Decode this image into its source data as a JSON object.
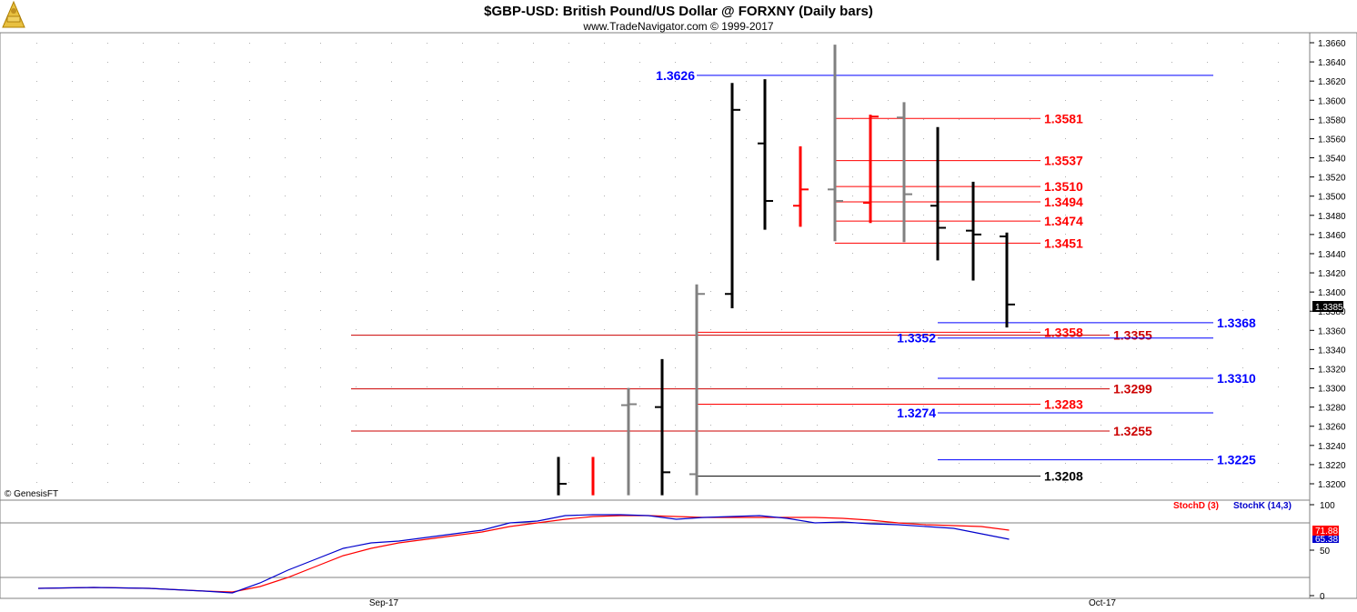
{
  "header": {
    "title": "$GBP-USD:  British Pound/US Dollar @ FORXNY  (Daily bars)",
    "subtitle": "www.TradeNavigator.com © 1999-2017",
    "copyright": "© GenesisFT"
  },
  "chart_data": [
    {
      "type": "ohlc-bar",
      "ylim": [
        1.319,
        1.3665
      ],
      "y_ticks": [
        "1.3660",
        "1.3640",
        "1.3620",
        "1.3600",
        "1.3580",
        "1.3560",
        "1.3540",
        "1.3520",
        "1.3500",
        "1.3480",
        "1.3460",
        "1.3440",
        "1.3420",
        "1.3400",
        "1.3380",
        "1.3360",
        "1.3340",
        "1.3320",
        "1.3300",
        "1.3280",
        "1.3260",
        "1.3240",
        "1.3220",
        "1.3200"
      ],
      "x_labels": [
        "Sep-17",
        "Oct-17"
      ],
      "last_price": "1.3385",
      "bars": [
        {
          "x": 0,
          "o": null,
          "h": 1.3228,
          "l": 1.3188,
          "c": 1.32,
          "color": "#000000"
        },
        {
          "x": 1,
          "o": null,
          "h": 1.3228,
          "l": 1.3188,
          "c": null,
          "color": "#ff0000"
        },
        {
          "x": 2,
          "o": 1.3282,
          "h": 1.33,
          "l": 1.3188,
          "c": 1.3283,
          "color": "#808080"
        },
        {
          "x": 3,
          "o": 1.328,
          "h": 1.333,
          "l": 1.3188,
          "c": 1.3212,
          "color": "#000000"
        },
        {
          "x": 4,
          "o": 1.321,
          "h": 1.3408,
          "l": 1.3188,
          "c": 1.3398,
          "color": "#808080"
        },
        {
          "x": 5,
          "o": 1.3398,
          "h": 1.3618,
          "l": 1.3383,
          "c": 1.359,
          "color": "#000000"
        },
        {
          "x": 6,
          "o": 1.3555,
          "h": 1.3622,
          "l": 1.3465,
          "c": 1.3495,
          "color": "#000000"
        },
        {
          "x": 7,
          "o": 1.349,
          "h": 1.3552,
          "l": 1.3468,
          "c": 1.3507,
          "color": "#ff0000"
        },
        {
          "x": 8,
          "o": 1.3507,
          "h": 1.3658,
          "l": 1.3453,
          "c": 1.3495,
          "color": "#808080"
        },
        {
          "x": 9,
          "o": 1.3493,
          "h": 1.3585,
          "l": 1.3472,
          "c": 1.3583,
          "color": "#ff0000"
        },
        {
          "x": 10,
          "o": 1.3582,
          "h": 1.3598,
          "l": 1.3452,
          "c": 1.3502,
          "color": "#808080"
        },
        {
          "x": 11,
          "o": 1.349,
          "h": 1.3572,
          "l": 1.3433,
          "c": 1.3467,
          "color": "#000000"
        },
        {
          "x": 12,
          "o": 1.3464,
          "h": 1.3515,
          "l": 1.3412,
          "c": 1.346,
          "color": "#000000"
        },
        {
          "x": 13,
          "o": 1.3458,
          "h": 1.3462,
          "l": 1.3363,
          "c": 1.3387,
          "color": "#000000"
        }
      ],
      "levels": [
        {
          "value": 1.3626,
          "label": "1.3626",
          "color": "#0000ff",
          "x_start": 14,
          "x_end": 50,
          "label_side": "left",
          "label_x": 13
        },
        {
          "value": 1.3581,
          "label": "1.3581",
          "color": "#ff0000",
          "x_start": 34,
          "x_end": 42,
          "label_side": "right",
          "label_x": 43
        },
        {
          "value": 1.3537,
          "label": "1.3537",
          "color": "#ff0000",
          "x_start": 34,
          "x_end": 42,
          "label_side": "right",
          "label_x": 43
        },
        {
          "value": 1.351,
          "label": "1.3510",
          "color": "#ff0000",
          "x_start": 34,
          "x_end": 42,
          "label_side": "right",
          "label_x": 43
        },
        {
          "value": 1.3494,
          "label": "1.3494",
          "color": "#ff0000",
          "x_start": 34,
          "x_end": 42,
          "label_side": "right",
          "label_x": 43
        },
        {
          "value": 1.3474,
          "label": "1.3474",
          "color": "#ff0000",
          "x_start": 34,
          "x_end": 42,
          "label_side": "right",
          "label_x": 43
        },
        {
          "value": 1.3451,
          "label": "1.3451",
          "color": "#ff0000",
          "x_start": 34,
          "x_end": 42,
          "label_side": "right",
          "label_x": 43
        },
        {
          "value": 1.3368,
          "label": "1.3368",
          "color": "#0000ff",
          "x_start": 38,
          "x_end": 50,
          "label_side": "right",
          "label_x": 51
        },
        {
          "value": 1.3358,
          "label": "1.3358",
          "color": "#ff0000",
          "x_start": 28,
          "x_end": 42,
          "label_side": "right",
          "label_x": 43
        },
        {
          "value": 1.3355,
          "label": "1.3355",
          "color": "#cc0000",
          "x_start": 14,
          "x_end": 45,
          "label_side": "right",
          "label_x": 46
        },
        {
          "value": 1.3352,
          "label": "1.3352",
          "color": "#0000ff",
          "x_start": 38,
          "x_end": 50,
          "label_side": "left",
          "label_x": 37
        },
        {
          "value": 1.331,
          "label": "1.3310",
          "color": "#0000ff",
          "x_start": 38,
          "x_end": 50,
          "label_side": "right",
          "label_x": 51
        },
        {
          "value": 1.3299,
          "label": "1.3299",
          "color": "#cc0000",
          "x_start": 14,
          "x_end": 45,
          "label_side": "right",
          "label_x": 46
        },
        {
          "value": 1.3283,
          "label": "1.3283",
          "color": "#ff0000",
          "x_start": 28,
          "x_end": 42,
          "label_side": "right",
          "label_x": 43
        },
        {
          "value": 1.3274,
          "label": "1.3274",
          "color": "#0000ff",
          "x_start": 38,
          "x_end": 50,
          "label_side": "left",
          "label_x": 37
        },
        {
          "value": 1.3255,
          "label": "1.3255",
          "color": "#cc0000",
          "x_start": 14,
          "x_end": 45,
          "label_side": "right",
          "label_x": 46
        },
        {
          "value": 1.3225,
          "label": "1.3225",
          "color": "#0000ff",
          "x_start": 38,
          "x_end": 50,
          "label_side": "right",
          "label_x": 51
        },
        {
          "value": 1.3208,
          "label": "1.3208",
          "color": "#000000",
          "x_start": 28,
          "x_end": 42,
          "label_side": "right",
          "label_x": 43
        }
      ]
    },
    {
      "type": "line",
      "ylim": [
        0,
        100
      ],
      "y_ticks": [
        "100",
        "50",
        "0"
      ],
      "reference_lines": [
        80,
        20
      ],
      "legend": [
        {
          "name": "StochD (3)",
          "color": "#ff0000"
        },
        {
          "name": "StochK (14,3)",
          "color": "#0000cc"
        }
      ],
      "last_values": [
        "71.88",
        "65.38"
      ],
      "x": [
        0,
        1,
        2,
        3,
        4,
        5,
        6,
        7,
        8,
        9,
        10,
        11,
        12,
        13,
        14,
        15,
        16,
        17,
        18,
        19,
        20,
        21,
        22,
        23,
        24,
        25,
        26,
        27,
        28,
        29,
        30,
        31,
        32,
        33,
        34,
        35,
        36,
        37,
        38,
        39,
        40,
        41,
        42,
        43,
        44,
        45,
        46,
        47,
        48,
        49,
        50,
        51,
        52,
        53,
        54,
        55,
        56,
        57,
        58,
        59,
        60
      ],
      "series": [
        {
          "name": "StochD (3)",
          "color": "#ff0000",
          "points": [
            [
              0,
              8
            ],
            [
              2,
              9
            ],
            [
              4,
              8
            ],
            [
              6,
              5
            ],
            [
              7,
              4
            ],
            [
              8,
              10
            ],
            [
              9,
              20
            ],
            [
              10,
              32
            ],
            [
              11,
              44
            ],
            [
              12,
              52
            ],
            [
              13,
              58
            ],
            [
              14,
              62
            ],
            [
              15,
              66
            ],
            [
              16,
              70
            ],
            [
              17,
              76
            ],
            [
              18,
              80
            ],
            [
              19,
              84
            ],
            [
              20,
              87
            ],
            [
              21,
              88
            ],
            [
              22,
              88
            ],
            [
              23,
              87
            ],
            [
              24,
              86
            ],
            [
              25,
              86
            ],
            [
              26,
              86
            ],
            [
              27,
              86
            ],
            [
              28,
              86
            ],
            [
              29,
              85
            ],
            [
              30,
              83
            ],
            [
              31,
              80
            ],
            [
              32,
              78
            ],
            [
              33,
              77
            ],
            [
              34,
              76
            ],
            [
              35,
              72
            ]
          ]
        },
        {
          "name": "StochK (14,3)",
          "color": "#0000cc",
          "points": [
            [
              0,
              8
            ],
            [
              2,
              9
            ],
            [
              4,
              8
            ],
            [
              6,
              5
            ],
            [
              7,
              3
            ],
            [
              8,
              14
            ],
            [
              9,
              28
            ],
            [
              10,
              40
            ],
            [
              11,
              52
            ],
            [
              12,
              58
            ],
            [
              13,
              60
            ],
            [
              14,
              64
            ],
            [
              15,
              68
            ],
            [
              16,
              72
            ],
            [
              17,
              80
            ],
            [
              18,
              82
            ],
            [
              19,
              88
            ],
            [
              20,
              89
            ],
            [
              21,
              89
            ],
            [
              22,
              88
            ],
            [
              23,
              84
            ],
            [
              24,
              86
            ],
            [
              25,
              87
            ],
            [
              26,
              88
            ],
            [
              27,
              85
            ],
            [
              28,
              80
            ],
            [
              29,
              81
            ],
            [
              30,
              79
            ],
            [
              31,
              78
            ],
            [
              32,
              76
            ],
            [
              33,
              74
            ],
            [
              34,
              68
            ],
            [
              35,
              62
            ]
          ]
        }
      ]
    }
  ]
}
